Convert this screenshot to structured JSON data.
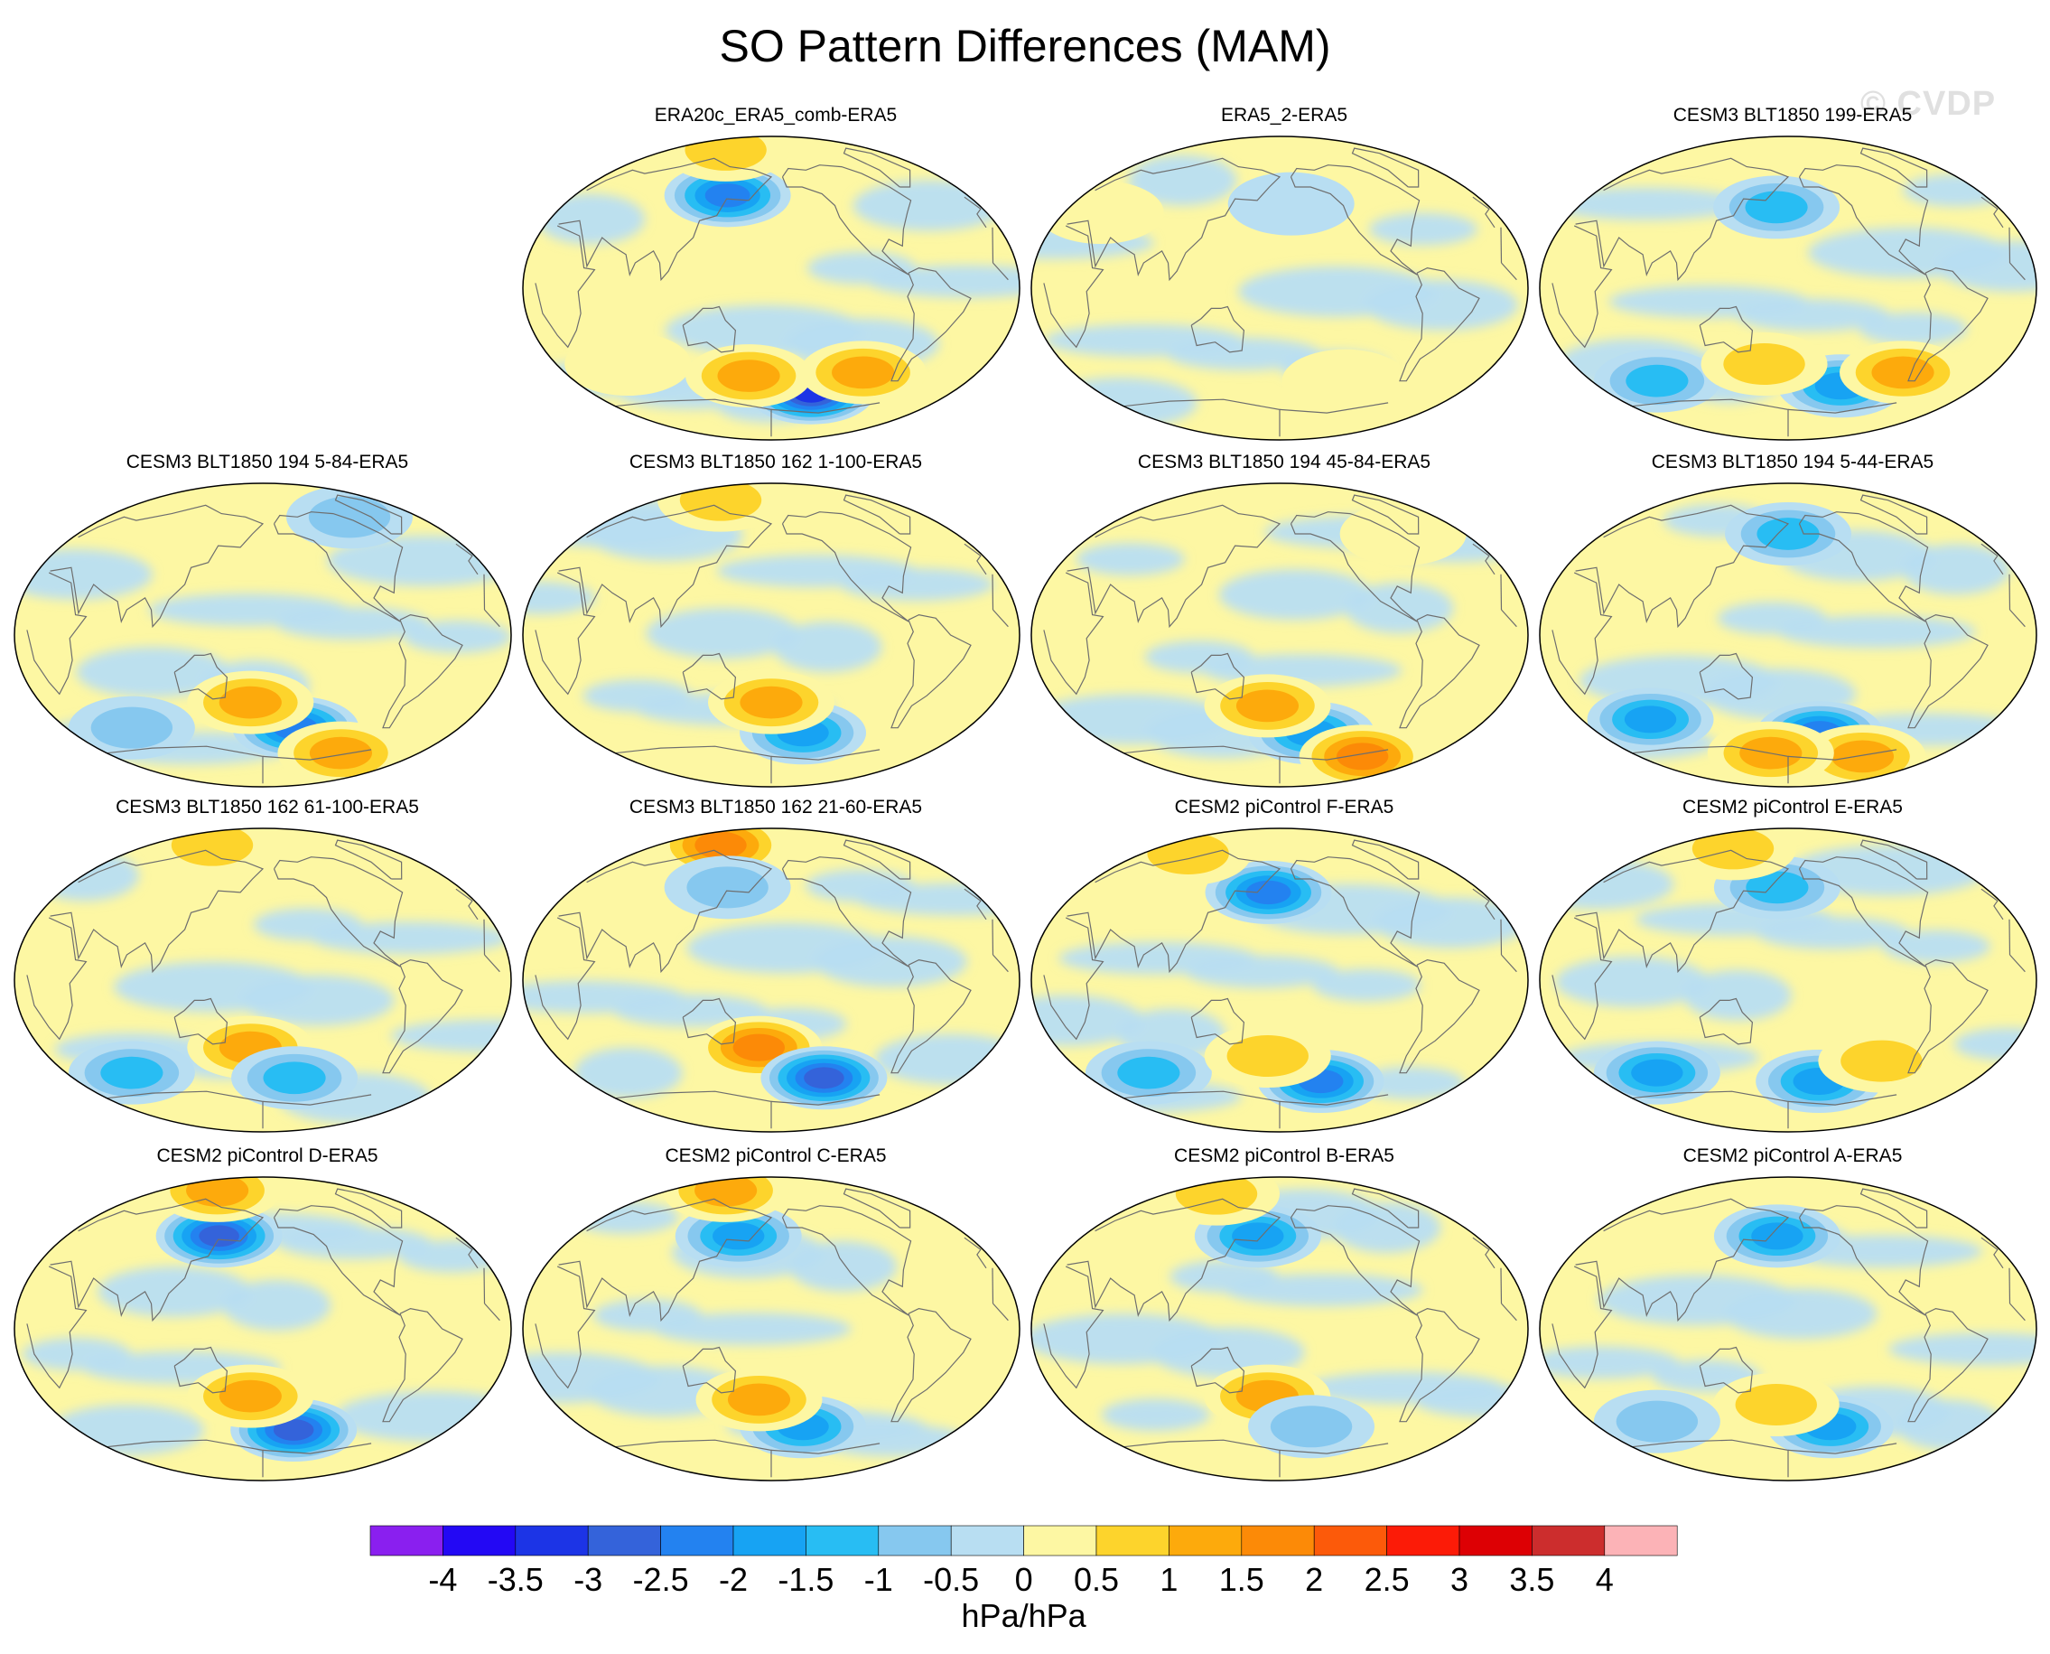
{
  "title": "SO Pattern Differences (MAM)",
  "watermark": "© CVDP",
  "colors": {
    "land_outline": "#6e6e6e",
    "map_border": "#000000"
  },
  "chart_data": {
    "type": "heatmap",
    "title": "SO Pattern Differences (MAM)",
    "variable": "sea level pressure regression difference",
    "projection": "Robinson-like, Pacific-centered",
    "panels": [
      {
        "title": "ERA20c_ERA5_comb-ERA5",
        "position": "row-1 col-2",
        "features": [
          {
            "lon": 140,
            "lat": 55,
            "value": -2.5
          },
          {
            "lon": -140,
            "lat": -62,
            "value": -3.5
          },
          {
            "lon": 160,
            "lat": -52,
            "value": 1.5
          },
          {
            "lon": -100,
            "lat": -50,
            "value": 1.5
          },
          {
            "lon": 100,
            "lat": 82,
            "value": 1.0
          },
          {
            "lon": 60,
            "lat": -45,
            "value": 0.5
          }
        ]
      },
      {
        "title": "ERA5_2-ERA5",
        "position": "row-1 col-3",
        "features": [
          {
            "lon": -170,
            "lat": 50,
            "value": -0.5
          },
          {
            "lon": -120,
            "lat": -55,
            "value": 0.5
          },
          {
            "lon": 30,
            "lat": 45,
            "value": 0.5
          }
        ]
      },
      {
        "title": "CESM3 BLT1850 199-ERA5",
        "position": "row-1 col-4",
        "features": [
          {
            "lon": 170,
            "lat": 48,
            "value": -1.5
          },
          {
            "lon": -130,
            "lat": -58,
            "value": -2.0
          },
          {
            "lon": 60,
            "lat": -55,
            "value": -1.5
          },
          {
            "lon": -80,
            "lat": -50,
            "value": 1.5
          },
          {
            "lon": 160,
            "lat": -45,
            "value": 1.0
          }
        ]
      },
      {
        "title": "CESM3 BLT1850 194 5-84-ERA5",
        "position": "row-2 col-1",
        "features": [
          {
            "lon": -150,
            "lat": -55,
            "value": -2.5
          },
          {
            "lon": 170,
            "lat": -40,
            "value": 1.5
          },
          {
            "lon": -90,
            "lat": -70,
            "value": 1.5
          },
          {
            "lon": 60,
            "lat": -55,
            "value": -1.0
          },
          {
            "lon": -80,
            "lat": 70,
            "value": -1.0
          }
        ]
      },
      {
        "title": "CESM3 BLT1850 162 1-100-ERA5",
        "position": "row-2 col-2",
        "features": [
          {
            "lon": -150,
            "lat": -58,
            "value": -2.0
          },
          {
            "lon": 180,
            "lat": -40,
            "value": 1.5
          },
          {
            "lon": 100,
            "lat": 80,
            "value": 1.0
          }
        ]
      },
      {
        "title": "CESM3 BLT1850 194 45-84-ERA5",
        "position": "row-2 col-3",
        "features": [
          {
            "lon": -150,
            "lat": -58,
            "value": -2.0
          },
          {
            "lon": 170,
            "lat": -42,
            "value": 1.5
          },
          {
            "lon": -80,
            "lat": -72,
            "value": 2.0
          },
          {
            "lon": -60,
            "lat": 60,
            "value": 0.5
          }
        ]
      },
      {
        "title": "CESM3 BLT1850 194 5-44-ERA5",
        "position": "row-2 col-4",
        "features": [
          {
            "lon": -150,
            "lat": -58,
            "value": -2.5
          },
          {
            "lon": 60,
            "lat": -50,
            "value": -2.0
          },
          {
            "lon": 180,
            "lat": 60,
            "value": -1.5
          },
          {
            "lon": -90,
            "lat": -72,
            "value": 1.5
          },
          {
            "lon": 160,
            "lat": -70,
            "value": 1.5
          }
        ]
      },
      {
        "title": "CESM3 BLT1850 162 61-100-ERA5",
        "position": "row-3 col-1",
        "features": [
          {
            "lon": 170,
            "lat": -40,
            "value": 1.5
          },
          {
            "lon": -150,
            "lat": -58,
            "value": -1.5
          },
          {
            "lon": 60,
            "lat": -55,
            "value": -1.5
          },
          {
            "lon": 100,
            "lat": 80,
            "value": 1.0
          }
        ]
      },
      {
        "title": "CESM3 BLT1850 162 21-60-ERA5",
        "position": "row-3 col-2",
        "features": [
          {
            "lon": 100,
            "lat": 80,
            "value": 2.0
          },
          {
            "lon": 170,
            "lat": -40,
            "value": 2.0
          },
          {
            "lon": -130,
            "lat": -58,
            "value": -3.0
          },
          {
            "lon": 140,
            "lat": 55,
            "value": -1.0
          }
        ]
      },
      {
        "title": "CESM2 piControl F-ERA5",
        "position": "row-3 col-3",
        "features": [
          {
            "lon": 170,
            "lat": 52,
            "value": -2.5
          },
          {
            "lon": -140,
            "lat": -60,
            "value": -2.5
          },
          {
            "lon": 60,
            "lat": -55,
            "value": -1.5
          },
          {
            "lon": 170,
            "lat": -45,
            "value": 1.0
          },
          {
            "lon": 60,
            "lat": 75,
            "value": 1.0
          }
        ]
      },
      {
        "title": "CESM2 piControl E-ERA5",
        "position": "row-3 col-4",
        "features": [
          {
            "lon": 170,
            "lat": 55,
            "value": -1.5
          },
          {
            "lon": -150,
            "lat": -60,
            "value": -2.0
          },
          {
            "lon": 60,
            "lat": -55,
            "value": -2.0
          },
          {
            "lon": 100,
            "lat": 78,
            "value": 1.0
          },
          {
            "lon": -100,
            "lat": -48,
            "value": 1.0
          }
        ]
      },
      {
        "title": "CESM2 piControl D-ERA5",
        "position": "row-4 col-1",
        "features": [
          {
            "lon": 140,
            "lat": 55,
            "value": -3.0
          },
          {
            "lon": -150,
            "lat": -60,
            "value": -3.0
          },
          {
            "lon": 170,
            "lat": -40,
            "value": 1.5
          },
          {
            "lon": 100,
            "lat": 82,
            "value": 1.5
          }
        ]
      },
      {
        "title": "CESM2 piControl C-ERA5",
        "position": "row-4 col-2",
        "features": [
          {
            "lon": 150,
            "lat": 55,
            "value": -2.0
          },
          {
            "lon": -150,
            "lat": -58,
            "value": -2.0
          },
          {
            "lon": 170,
            "lat": -42,
            "value": 1.5
          },
          {
            "lon": 100,
            "lat": 82,
            "value": 1.5
          }
        ]
      },
      {
        "title": "CESM2 piControl B-ERA5",
        "position": "row-4 col-3",
        "features": [
          {
            "lon": 160,
            "lat": 55,
            "value": -2.0
          },
          {
            "lon": 170,
            "lat": -40,
            "value": 1.5
          },
          {
            "lon": -150,
            "lat": -58,
            "value": -1.0
          },
          {
            "lon": 80,
            "lat": 80,
            "value": 1.0
          }
        ]
      },
      {
        "title": "CESM2 piControl A-ERA5",
        "position": "row-4 col-4",
        "features": [
          {
            "lon": 170,
            "lat": 55,
            "value": -2.0
          },
          {
            "lon": -140,
            "lat": -58,
            "value": -2.0
          },
          {
            "lon": 170,
            "lat": -45,
            "value": 1.0
          },
          {
            "lon": 60,
            "lat": -55,
            "value": -1.0
          }
        ]
      }
    ],
    "colorbar": {
      "label": "hPa/hPa",
      "tick_labels": [
        "-4",
        "-3.5",
        "-3",
        "-2.5",
        "-2",
        "-1.5",
        "-1",
        "-0.5",
        "0",
        "0.5",
        "1",
        "1.5",
        "2",
        "2.5",
        "3",
        "3.5",
        "4"
      ],
      "levels": [
        -4,
        -3.5,
        -3,
        -2.5,
        -2,
        -1.5,
        -1,
        -0.5,
        0,
        0.5,
        1,
        1.5,
        2,
        2.5,
        3,
        3.5,
        4
      ],
      "colors": [
        "#8a1fef",
        "#2308f4",
        "#1c34e6",
        "#3463da",
        "#2382f0",
        "#17a3f3",
        "#28bdf3",
        "#86c8ef",
        "#b8def2",
        "#fdf7a3",
        "#fdd42c",
        "#fdaa0c",
        "#fc8a07",
        "#fc5a0a",
        "#fc1b07",
        "#dd0004",
        "#cc2d2d",
        "#fcb3b7"
      ]
    }
  }
}
